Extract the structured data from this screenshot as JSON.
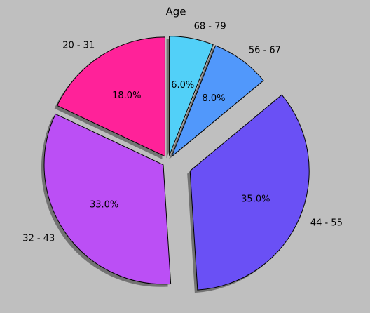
{
  "chart_data": {
    "type": "pie",
    "title": "Age",
    "categories": [
      "20 - 31",
      "32 - 43",
      "44 - 55",
      "56 - 67",
      "68 - 79"
    ],
    "values": [
      18.0,
      33.0,
      35.0,
      8.0,
      6.0
    ],
    "value_labels": [
      "18.0%",
      "33.0%",
      "35.0%",
      "8.0%",
      "6.0%"
    ],
    "colors": [
      "#ff2299",
      "#bb4ff5",
      "#6a50f5",
      "#5198fb",
      "#52d0f8"
    ],
    "shadow": true
  }
}
